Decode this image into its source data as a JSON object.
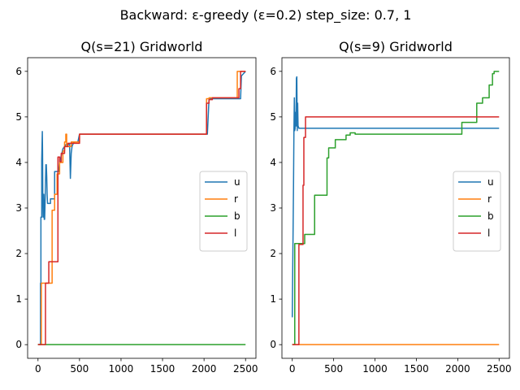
{
  "figure": {
    "suptitle": "Backward: ε-greedy (ε=0.2) step_size: 0.7, 1"
  },
  "chart_data": [
    {
      "type": "line",
      "title": "Q(s=21) Gridworld",
      "xlabel": "",
      "ylabel": "",
      "xlim": [
        -125,
        2625
      ],
      "ylim": [
        -0.3,
        6.3
      ],
      "xticks": [
        0,
        500,
        1000,
        1500,
        2000,
        2500
      ],
      "yticks": [
        0,
        1,
        2,
        3,
        4,
        5,
        6
      ],
      "legend": "center-right",
      "series": [
        {
          "name": "u",
          "color": "#1f77b4",
          "x": [
            0,
            30,
            30,
            35,
            35,
            45,
            45,
            52,
            55,
            58,
            62,
            66,
            70,
            75,
            80,
            85,
            90,
            95,
            100,
            105,
            110,
            115,
            120,
            150,
            150,
            200,
            200,
            250,
            260,
            280,
            300,
            320,
            340,
            360,
            380,
            390,
            400,
            410,
            420,
            440,
            480,
            500,
            2040,
            2060,
            2440,
            2450,
            2500
          ],
          "y": [
            0,
            0,
            1.35,
            1.35,
            2.8,
            2.8,
            4.05,
            4.68,
            4.2,
            3.2,
            2.8,
            3.05,
            3.3,
            2.75,
            2.75,
            3.1,
            3.5,
            3.95,
            3.95,
            3.7,
            3.3,
            3.1,
            3.1,
            3.1,
            3.2,
            3.2,
            3.8,
            3.8,
            4.0,
            4.15,
            4.3,
            4.35,
            4.4,
            4.4,
            4.4,
            3.65,
            4.2,
            4.35,
            4.4,
            4.45,
            4.45,
            4.62,
            4.62,
            5.4,
            5.4,
            5.9,
            6.0
          ]
        },
        {
          "name": "r",
          "color": "#ff7f0e",
          "x": [
            0,
            40,
            40,
            170,
            170,
            200,
            200,
            230,
            230,
            260,
            260,
            300,
            300,
            320,
            320,
            335,
            335,
            345,
            345,
            400,
            400,
            500,
            500,
            2030,
            2030,
            2060,
            2060,
            2400,
            2400,
            2500
          ],
          "y": [
            0,
            0,
            1.35,
            1.35,
            2.95,
            2.95,
            3.3,
            3.3,
            3.75,
            3.75,
            4.0,
            4.0,
            4.25,
            4.25,
            4.45,
            4.45,
            4.62,
            4.62,
            4.35,
            4.35,
            4.45,
            4.45,
            4.62,
            4.62,
            5.4,
            5.4,
            5.42,
            5.42,
            6.0,
            6.0
          ]
        },
        {
          "name": "b",
          "color": "#2ca02c",
          "x": [
            0,
            2500
          ],
          "y": [
            0,
            0
          ]
        },
        {
          "name": "l",
          "color": "#d62728",
          "x": [
            0,
            90,
            90,
            130,
            130,
            240,
            240,
            260,
            260,
            280,
            280,
            320,
            320,
            360,
            360,
            500,
            500,
            2030,
            2030,
            2060,
            2060,
            2100,
            2100,
            2420,
            2420,
            2440,
            2440,
            2500
          ],
          "y": [
            0,
            0,
            1.35,
            1.35,
            1.82,
            1.82,
            4.12,
            4.12,
            4.02,
            4.02,
            4.2,
            4.2,
            4.35,
            4.35,
            4.42,
            4.42,
            4.62,
            4.62,
            5.3,
            5.3,
            5.38,
            5.38,
            5.42,
            5.42,
            5.62,
            5.62,
            6.0,
            6.0
          ]
        }
      ]
    },
    {
      "type": "line",
      "title": "Q(s=9) Gridworld",
      "xlabel": "",
      "ylabel": "",
      "xlim": [
        -125,
        2625
      ],
      "ylim": [
        -0.3,
        6.3
      ],
      "xticks": [
        0,
        500,
        1000,
        1500,
        2000,
        2500
      ],
      "yticks": [
        0,
        1,
        2,
        3,
        4,
        5,
        6
      ],
      "legend": "center-right",
      "series": [
        {
          "name": "u",
          "color": "#1f77b4",
          "x": [
            0,
            15,
            20,
            25,
            30,
            35,
            40,
            45,
            50,
            55,
            60,
            65,
            70,
            75,
            80,
            90,
            110,
            130,
            2500
          ],
          "y": [
            0.6,
            3.5,
            4.7,
            5.42,
            4.7,
            4.75,
            5.1,
            4.8,
            5.85,
            5.88,
            4.7,
            5.3,
            4.8,
            4.78,
            4.75,
            4.75,
            4.75,
            4.75,
            4.75
          ]
        },
        {
          "name": "r",
          "color": "#ff7f0e",
          "x": [
            0,
            2500
          ],
          "y": [
            0,
            0
          ]
        },
        {
          "name": "b",
          "color": "#2ca02c",
          "x": [
            0,
            30,
            30,
            150,
            150,
            270,
            270,
            420,
            420,
            440,
            440,
            520,
            520,
            650,
            650,
            700,
            700,
            760,
            760,
            2050,
            2050,
            2230,
            2230,
            2300,
            2300,
            2380,
            2380,
            2420,
            2420,
            2440,
            2440,
            2500
          ],
          "y": [
            0,
            0,
            2.22,
            2.22,
            2.42,
            2.42,
            3.28,
            3.28,
            4.1,
            4.1,
            4.32,
            4.32,
            4.5,
            4.5,
            4.6,
            4.6,
            4.65,
            4.65,
            4.62,
            4.62,
            4.88,
            4.88,
            5.3,
            5.3,
            5.42,
            5.42,
            5.7,
            5.7,
            5.95,
            5.95,
            6.0,
            6.0
          ]
        },
        {
          "name": "l",
          "color": "#d62728",
          "x": [
            0,
            80,
            80,
            130,
            130,
            140,
            140,
            160,
            160,
            2500
          ],
          "y": [
            0,
            0,
            2.2,
            2.2,
            3.5,
            3.5,
            4.55,
            4.55,
            5.0,
            5.0
          ]
        }
      ]
    }
  ]
}
